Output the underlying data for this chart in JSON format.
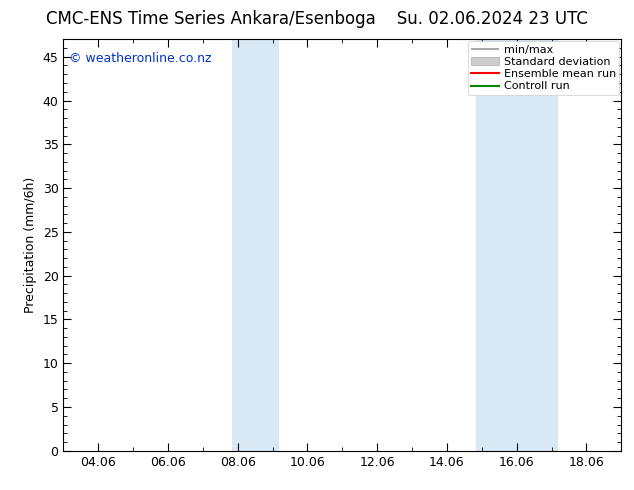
{
  "title_left": "CMC-ENS Time Series Ankara/Esenboga",
  "title_right": "Su. 02.06.2024 23 UTC",
  "ylabel": "Precipitation (mm/6h)",
  "watermark": "© weatheronline.co.nz",
  "xtick_labels": [
    "04.06",
    "06.06",
    "08.06",
    "10.06",
    "12.06",
    "14.06",
    "16.06",
    "18.06"
  ],
  "xtick_positions": [
    4,
    6,
    8,
    10,
    12,
    14,
    16,
    18
  ],
  "xlim": [
    3.0,
    19.0
  ],
  "ylim": [
    0,
    47
  ],
  "yticks": [
    0,
    5,
    10,
    15,
    20,
    25,
    30,
    35,
    40,
    45
  ],
  "band1_xmin": 7.83,
  "band1_xmax": 9.17,
  "band2_xmin": 14.83,
  "band2_xmax": 17.17,
  "band_color": "#d8e8f5",
  "legend_entries": [
    {
      "label": "min/max",
      "color": "#999999",
      "lw": 1.5
    },
    {
      "label": "Standard deviation",
      "color": "#cccccc",
      "lw": 6
    },
    {
      "label": "Ensemble mean run",
      "color": "#ff0000",
      "lw": 1.5
    },
    {
      "label": "Controll run",
      "color": "#008800",
      "lw": 1.5
    }
  ],
  "background_color": "#ffffff",
  "plot_bg_color": "#ffffff",
  "watermark_color": "#0033cc",
  "title_fontsize": 12,
  "ylabel_fontsize": 9,
  "tick_fontsize": 9,
  "legend_fontsize": 8,
  "watermark_fontsize": 9
}
